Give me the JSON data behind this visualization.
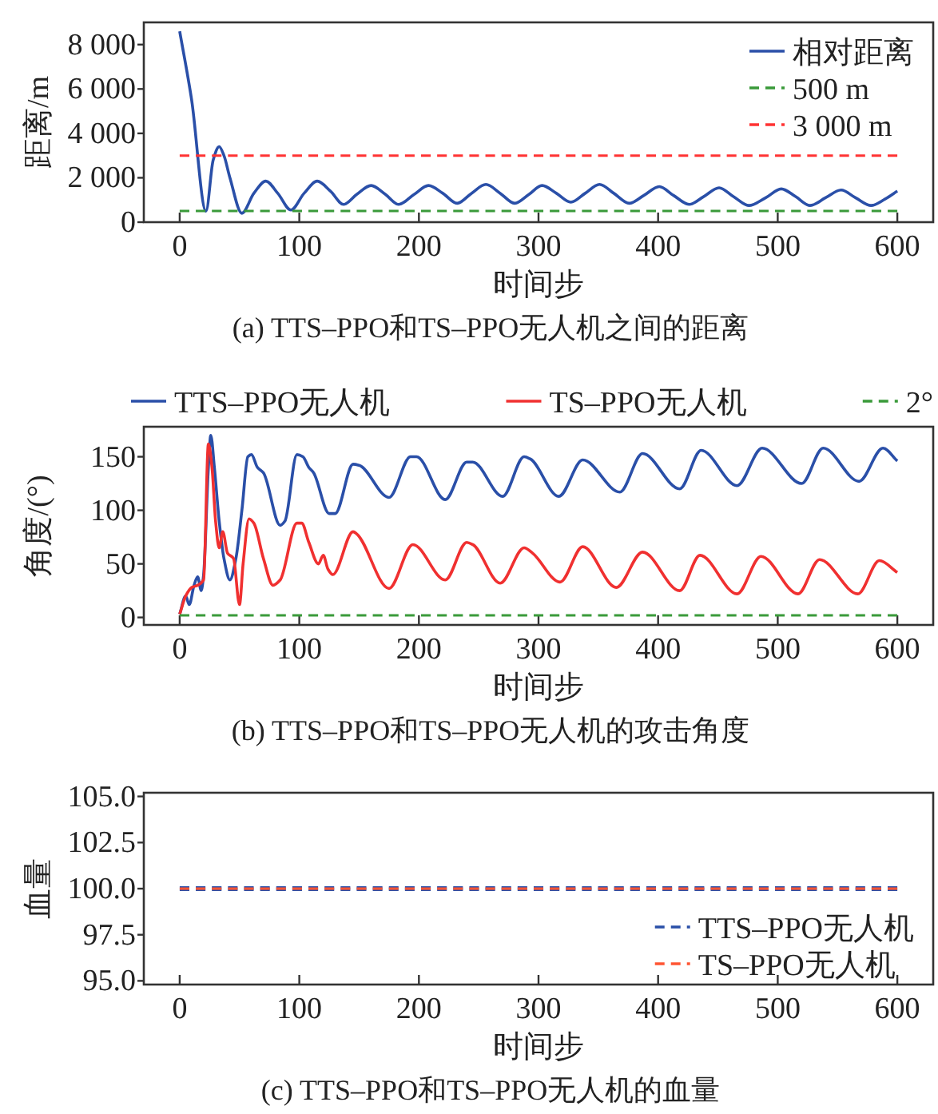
{
  "chart_data": [
    {
      "type": "line",
      "title": "(a) TTS–PPO和TS–PPO无人机之间的距离",
      "xlabel": "时间步",
      "ylabel": "距离/m",
      "xlim": [
        -30,
        630
      ],
      "ylim": [
        0,
        9000
      ],
      "xticks": [
        0,
        100,
        200,
        300,
        400,
        500,
        600
      ],
      "yticks": [
        0,
        {
          "value": 2000,
          "label": "2 000"
        },
        {
          "value": 4000,
          "label": "4 000"
        },
        {
          "value": 6000,
          "label": "6 000"
        },
        {
          "value": 8000,
          "label": "8 000"
        }
      ],
      "legend": "top right",
      "grid": false,
      "series": [
        {
          "name": "相对距离",
          "color": "#2a4fa8",
          "line_style": "solid",
          "x": [
            0,
            10,
            22,
            28,
            33,
            37,
            42,
            52,
            62,
            72,
            82,
            93,
            104,
            115,
            126,
            137,
            148,
            160,
            172,
            183,
            196,
            208,
            220,
            232,
            244,
            256,
            268,
            280,
            292,
            303,
            315,
            327,
            339,
            351,
            363,
            376,
            388,
            401,
            413,
            426,
            438,
            451,
            463,
            476,
            490,
            503,
            515,
            527,
            540,
            553,
            565,
            578,
            590,
            600
          ],
          "values": [
            8600,
            5500,
            500,
            2800,
            3400,
            3000,
            2000,
            400,
            1300,
            1850,
            1300,
            550,
            1300,
            1850,
            1400,
            800,
            1250,
            1650,
            1250,
            800,
            1250,
            1650,
            1300,
            850,
            1300,
            1700,
            1300,
            850,
            1250,
            1650,
            1300,
            900,
            1300,
            1700,
            1300,
            850,
            1200,
            1600,
            1200,
            800,
            1150,
            1550,
            1150,
            750,
            1100,
            1500,
            1150,
            750,
            1100,
            1450,
            1100,
            750,
            1050,
            1400
          ]
        }
      ],
      "ref_lines": [
        {
          "axis": "y",
          "value": 500,
          "label": "500 m",
          "color": "#3a9a3a",
          "line_style": "dashed"
        },
        {
          "axis": "y",
          "value": 3000,
          "label": "3 000 m",
          "color": "#ff3333",
          "line_style": "dashed"
        }
      ]
    },
    {
      "type": "line",
      "title": "(b) TTS–PPO和TS–PPO无人机的攻击角度",
      "xlabel": "时间步",
      "ylabel": "角度/(°)",
      "xlim": [
        -30,
        630
      ],
      "ylim": [
        -7,
        178
      ],
      "xticks": [
        0,
        100,
        200,
        300,
        400,
        500,
        600
      ],
      "yticks": [
        0,
        50,
        100,
        150
      ],
      "legend": "top",
      "grid": false,
      "series": [
        {
          "name": "TTS–PPO无人机",
          "color": "#2a4fa8",
          "line_style": "solid",
          "x": [
            0,
            5,
            8,
            12,
            15,
            18,
            20,
            24,
            26,
            29,
            33,
            37,
            42,
            47,
            52,
            57,
            60,
            65,
            70,
            84,
            88,
            98,
            103,
            108,
            112,
            125,
            130,
            145,
            150,
            175,
            193,
            198,
            222,
            240,
            245,
            270,
            288,
            293,
            317,
            337,
            368,
            387,
            418,
            436,
            466,
            487,
            520,
            538,
            568,
            588,
            600
          ],
          "values": [
            3,
            20,
            12,
            30,
            38,
            25,
            40,
            140,
            170,
            140,
            90,
            55,
            35,
            55,
            100,
            150,
            152,
            140,
            135,
            86,
            90,
            152,
            150,
            140,
            135,
            97,
            97,
            143,
            142,
            112,
            150,
            150,
            110,
            145,
            145,
            113,
            150,
            148,
            113,
            147,
            117,
            153,
            120,
            156,
            123,
            158,
            125,
            158,
            127,
            158,
            146
          ]
        },
        {
          "name": "TS–PPO无人机",
          "color": "#f03030",
          "line_style": "solid",
          "x": [
            0,
            5,
            10,
            15,
            20,
            24,
            27,
            30,
            33,
            36,
            40,
            45,
            50,
            53,
            58,
            62,
            70,
            78,
            84,
            98,
            102,
            108,
            116,
            120,
            124,
            128,
            145,
            148,
            175,
            195,
            222,
            240,
            245,
            268,
            288,
            295,
            318,
            337,
            365,
            387,
            418,
            435,
            466,
            486,
            517,
            535,
            567,
            585,
            600
          ],
          "values": [
            3,
            20,
            28,
            30,
            35,
            162,
            140,
            90,
            65,
            80,
            60,
            55,
            12,
            50,
            92,
            88,
            55,
            30,
            35,
            88,
            88,
            70,
            50,
            58,
            45,
            40,
            80,
            78,
            27,
            68,
            35,
            70,
            68,
            32,
            65,
            60,
            33,
            66,
            28,
            61,
            25,
            58,
            22,
            57,
            22,
            54,
            22,
            53,
            42
          ]
        }
      ],
      "ref_lines": [
        {
          "axis": "y",
          "value": 2,
          "label": "2°",
          "color": "#3a9a3a",
          "line_style": "dashed"
        }
      ]
    },
    {
      "type": "line",
      "title": "(c) TTS–PPO和TS–PPO无人机的血量",
      "xlabel": "时间步",
      "ylabel": "血量",
      "xlim": [
        -30,
        630
      ],
      "ylim": [
        94.8,
        105.2
      ],
      "xticks": [
        0,
        100,
        200,
        300,
        400,
        500,
        600
      ],
      "yticks": [
        {
          "value": 95,
          "label": "95.0"
        },
        {
          "value": 97.5,
          "label": "97.5"
        },
        {
          "value": 100,
          "label": "100.0"
        },
        {
          "value": 102.5,
          "label": "102.5"
        },
        {
          "value": 105,
          "label": "105.0"
        }
      ],
      "legend": "bottom right",
      "grid": false,
      "series": [
        {
          "name": "TTS–PPO无人机",
          "color": "#2a4fa8",
          "line_style": "dashed",
          "x": [
            0,
            600
          ],
          "values": [
            100,
            100
          ]
        },
        {
          "name": "TS–PPO无人机",
          "color": "#ff5533",
          "line_style": "dashed",
          "x": [
            0,
            600
          ],
          "values": [
            100,
            100
          ]
        }
      ]
    }
  ]
}
